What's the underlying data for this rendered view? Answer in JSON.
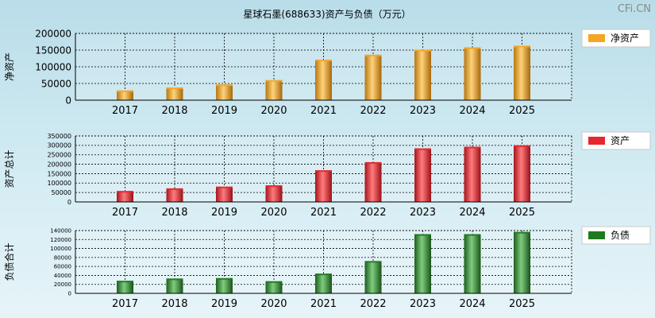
{
  "page": {
    "title": "星球石墨(688633)资产与负债（万元）",
    "brand": "CFi.CN"
  },
  "chart_data": [
    {
      "type": "bar",
      "ylabel": "净资产",
      "legend": "净资产",
      "color": "#f5a623",
      "categories": [
        "2017",
        "2018",
        "2019",
        "2020",
        "2021",
        "2022",
        "2023",
        "2024",
        "2025"
      ],
      "values": [
        29000,
        38000,
        47000,
        60000,
        121000,
        136000,
        151000,
        158000,
        163000
      ],
      "ylim": [
        0,
        200000
      ],
      "yticks": [
        0,
        50000,
        100000,
        150000,
        200000
      ],
      "grid": true,
      "legend_position": "right"
    },
    {
      "type": "bar",
      "ylabel": "资产总计",
      "legend": "资产",
      "color": "#e8262b",
      "categories": [
        "2017",
        "2018",
        "2019",
        "2020",
        "2021",
        "2022",
        "2023",
        "2024",
        "2025"
      ],
      "values": [
        58000,
        72000,
        81000,
        88000,
        168000,
        211000,
        284000,
        293000,
        300000
      ],
      "ylim": [
        0,
        350000
      ],
      "yticks": [
        0,
        50000,
        100000,
        150000,
        200000,
        250000,
        300000,
        350000
      ],
      "grid": true,
      "legend_position": "right"
    },
    {
      "type": "bar",
      "ylabel": "负债合计",
      "legend": "负债",
      "color": "#1f7a1f",
      "categories": [
        "2017",
        "2018",
        "2019",
        "2020",
        "2021",
        "2022",
        "2023",
        "2024",
        "2025"
      ],
      "values": [
        28000,
        33000,
        34000,
        27000,
        44000,
        72000,
        132000,
        132000,
        137000
      ],
      "ylim": [
        0,
        140000
      ],
      "yticks": [
        0,
        20000,
        40000,
        60000,
        80000,
        100000,
        120000,
        140000
      ],
      "grid": true,
      "legend_position": "right"
    }
  ]
}
